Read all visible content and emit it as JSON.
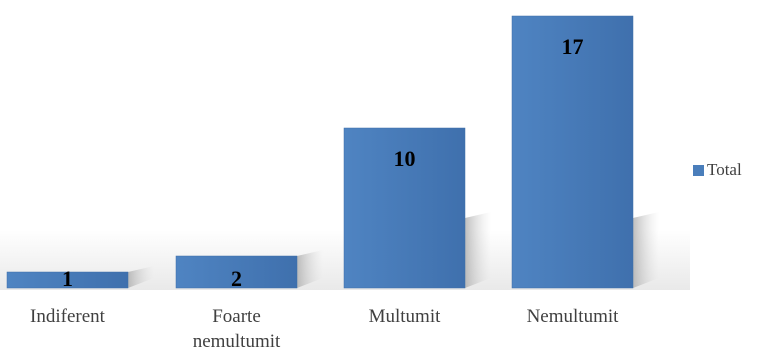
{
  "colors": {
    "bar": "#4a7ebb",
    "bar_edge": "#3f6fa8",
    "label_text": "#000000",
    "axis_text": "#404040"
  },
  "chart_data": {
    "type": "bar",
    "categories": [
      "Indiferent",
      "Foarte nemultumit",
      "Multumit",
      "Nemultumit"
    ],
    "category_lines": [
      [
        "Indiferent"
      ],
      [
        "Foarte",
        "nemultumit"
      ],
      [
        "Multumit"
      ],
      [
        "Nemultumit"
      ]
    ],
    "series": [
      {
        "name": "Total",
        "values": [
          1,
          2,
          10,
          17
        ]
      }
    ],
    "data_labels": [
      "1",
      "2",
      "10",
      "17"
    ],
    "title": "",
    "xlabel": "",
    "ylabel": "",
    "ylim": [
      0,
      18
    ],
    "grid": false,
    "legend_position": "right",
    "style": "3d-shadow"
  }
}
